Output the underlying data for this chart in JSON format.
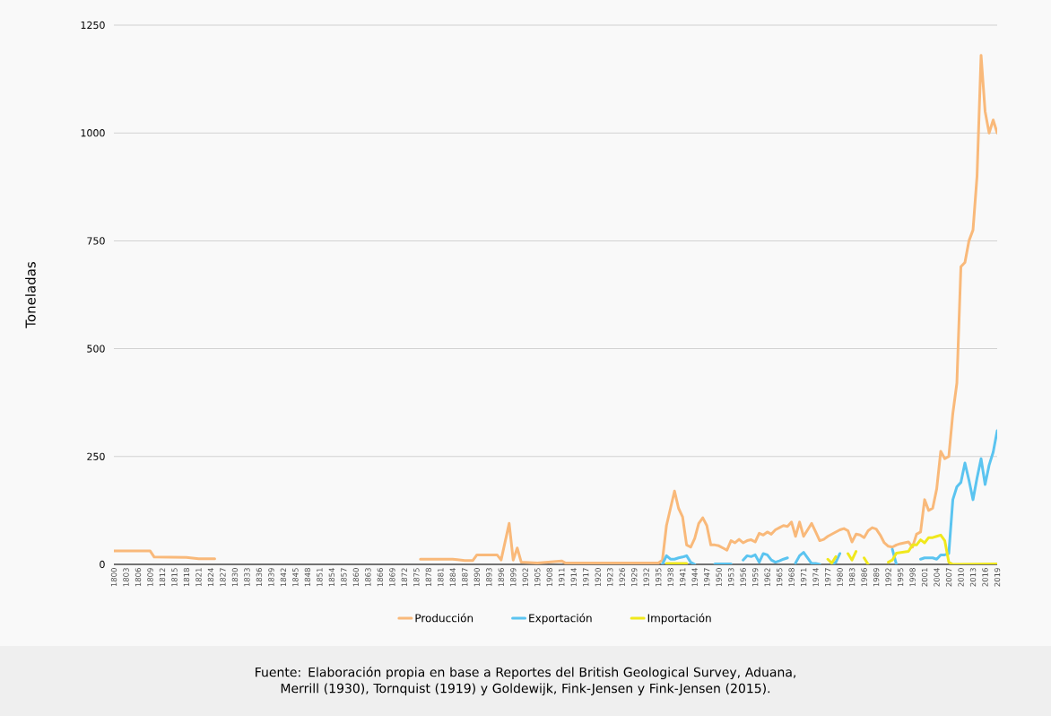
{
  "chart_data": {
    "type": "line",
    "ylabel": "Toneladas",
    "xlim": [
      1800,
      2019
    ],
    "ylim": [
      0,
      1250
    ],
    "yticks": [
      0,
      250,
      500,
      750,
      1000,
      1250
    ],
    "xticks": [
      1800,
      1803,
      1806,
      1809,
      1812,
      1815,
      1818,
      1821,
      1824,
      1827,
      1830,
      1833,
      1836,
      1839,
      1842,
      1845,
      1848,
      1851,
      1854,
      1857,
      1860,
      1863,
      1866,
      1869,
      1872,
      1875,
      1878,
      1881,
      1884,
      1887,
      1890,
      1893,
      1896,
      1899,
      1902,
      1905,
      1908,
      1911,
      1914,
      1917,
      1920,
      1923,
      1926,
      1929,
      1932,
      1935,
      1938,
      1941,
      1944,
      1947,
      1950,
      1953,
      1956,
      1959,
      1962,
      1965,
      1968,
      1971,
      1974,
      1977,
      1980,
      1983,
      1986,
      1989,
      1992,
      1995,
      1998,
      2001,
      2004,
      2007,
      2010,
      2013,
      2016,
      2019
    ],
    "grid": "y",
    "legend": "bottom",
    "marker": "none",
    "line_style": "solid",
    "series": [
      {
        "name": "Producción",
        "color": "#f9b97a",
        "x": [
          1800,
          1809,
          1810,
          1818,
          1821,
          1825,
          1826,
          1876,
          1884,
          1887,
          1889,
          1890,
          1895,
          1896,
          1898,
          1899,
          1900,
          1901,
          1905,
          1911,
          1912,
          1935,
          1936,
          1937,
          1938,
          1939,
          1940,
          1941,
          1942,
          1943,
          1944,
          1945,
          1946,
          1947,
          1948,
          1949,
          1950,
          1951,
          1952,
          1953,
          1954,
          1955,
          1956,
          1957,
          1958,
          1959,
          1960,
          1961,
          1962,
          1963,
          1964,
          1965,
          1966,
          1967,
          1968,
          1969,
          1970,
          1971,
          1972,
          1973,
          1974,
          1975,
          1976,
          1977,
          1978,
          1979,
          1980,
          1981,
          1982,
          1983,
          1984,
          1985,
          1986,
          1987,
          1988,
          1989,
          1990,
          1991,
          1992,
          1993,
          1994,
          1995,
          1996,
          1997,
          1998,
          1999,
          2000,
          2001,
          2002,
          2003,
          2004,
          2005,
          2006,
          2007,
          2008,
          2009,
          2010,
          2011,
          2012,
          2013,
          2014,
          2015,
          2016,
          2017,
          2018,
          2019
        ],
        "values": [
          31,
          31,
          17,
          16,
          13,
          13,
          null,
          12,
          12,
          9,
          9,
          22,
          22,
          10,
          95,
          10,
          38,
          5,
          3,
          8,
          3,
          3,
          10,
          90,
          130,
          170,
          130,
          110,
          45,
          40,
          60,
          95,
          108,
          90,
          45,
          45,
          43,
          38,
          33,
          55,
          50,
          58,
          50,
          55,
          57,
          52,
          72,
          68,
          75,
          70,
          80,
          85,
          90,
          88,
          98,
          65,
          98,
          65,
          80,
          95,
          75,
          55,
          58,
          65,
          70,
          75,
          80,
          83,
          78,
          52,
          70,
          68,
          62,
          78,
          85,
          82,
          68,
          50,
          42,
          40,
          45,
          48,
          50,
          52,
          40,
          70,
          75,
          150,
          125,
          130,
          175,
          262,
          245,
          250,
          350,
          420,
          690,
          700,
          750,
          775,
          900,
          1180,
          1050,
          1000,
          1030,
          1000
        ]
      },
      {
        "name": "Exportación",
        "color": "#5bc4f0",
        "x": [
          1936,
          1937,
          1938,
          1939,
          1940,
          1941,
          1942,
          1943,
          1944,
          1945,
          1949,
          1953,
          1954,
          1956,
          1957,
          1958,
          1959,
          1960,
          1961,
          1962,
          1963,
          1964,
          1965,
          1966,
          1967,
          1968,
          1969,
          1970,
          1971,
          1972,
          1973,
          1974,
          1975,
          1976,
          1978,
          1979,
          1980,
          1981,
          1993,
          1994,
          1995,
          2000,
          2001,
          2002,
          2003,
          2004,
          2005,
          2006,
          2007,
          2008,
          2009,
          2010,
          2011,
          2012,
          2013,
          2014,
          2015,
          2016,
          2017,
          2018,
          2019
        ],
        "values": [
          0,
          20,
          12,
          12,
          15,
          17,
          20,
          5,
          0,
          null,
          1,
          1,
          null,
          10,
          20,
          18,
          22,
          5,
          25,
          22,
          10,
          5,
          8,
          12,
          15,
          null,
          3,
          20,
          28,
          15,
          2,
          2,
          0,
          null,
          0,
          5,
          25,
          null,
          35,
          0,
          null,
          12,
          15,
          15,
          15,
          12,
          22,
          22,
          25,
          150,
          180,
          190,
          235,
          195,
          150,
          200,
          245,
          185,
          230,
          260,
          310
        ]
      },
      {
        "name": "Importación",
        "color": "#f0e81c",
        "x": [
          1937,
          1942,
          1943,
          1977,
          1978,
          1979,
          1980,
          1982,
          1983,
          1984,
          1985,
          1986,
          1987,
          1988,
          1992,
          1993,
          1994,
          1997,
          1998,
          1999,
          2000,
          2001,
          2002,
          2003,
          2004,
          2005,
          2006,
          2007,
          2008,
          2019
        ],
        "values": [
          2,
          2,
          null,
          12,
          3,
          18,
          null,
          25,
          10,
          30,
          null,
          15,
          0,
          null,
          5,
          10,
          26,
          30,
          45,
          45,
          57,
          50,
          62,
          62,
          65,
          68,
          55,
          5,
          0,
          1
        ]
      }
    ],
    "annotations": [
      "Fuente: Elaboración propia en base a Reportes del British Geological Survey, Aduana, Merrill (1930), Tornquist (1919) y Goldewijk, Fink-Jensen y Fink-Jensen (2015)."
    ]
  }
}
